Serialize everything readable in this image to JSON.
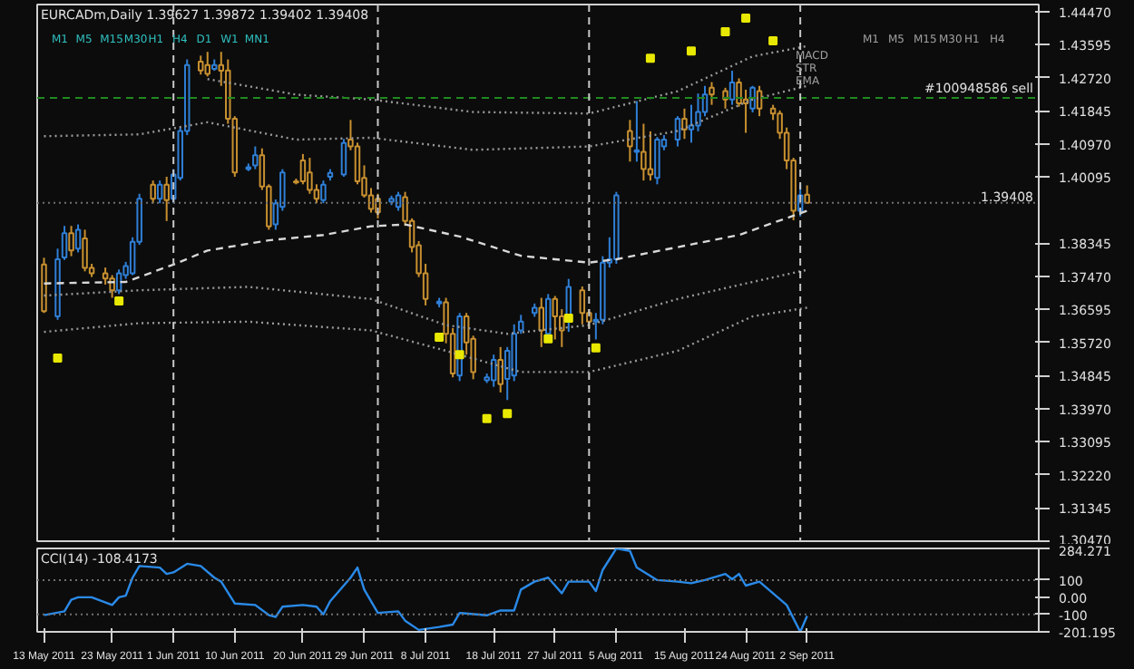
{
  "chart_data": [
    {
      "type": "candlestick",
      "title": "EURCADm,Daily 1.39627 1.39872 1.39402 1.39408",
      "annotations": [
        "M1",
        "M5",
        "M15",
        "M30",
        "H1",
        "H4",
        "D1",
        "W1",
        "MN1",
        "M1",
        "M5",
        "M15",
        "M30",
        "H1",
        "H4",
        "MACD",
        "STR",
        "EMA"
      ],
      "x": [
        "2011-05-13",
        "2011-05-15",
        "2011-05-16",
        "2011-05-17",
        "2011-05-18",
        "2011-05-19",
        "2011-05-20",
        "2011-05-22",
        "2011-05-23",
        "2011-05-24",
        "2011-05-25",
        "2011-05-26",
        "2011-05-27",
        "2011-05-29",
        "2011-05-30",
        "2011-05-31",
        "2011-06-01",
        "2011-06-02",
        "2011-06-03",
        "2011-06-05",
        "2011-06-06",
        "2011-06-07",
        "2011-06-08",
        "2011-06-09",
        "2011-06-10",
        "2011-06-12",
        "2011-06-13",
        "2011-06-14",
        "2011-06-15",
        "2011-06-16",
        "2011-06-17",
        "2011-06-19",
        "2011-06-20",
        "2011-06-21",
        "2011-06-22",
        "2011-06-23",
        "2011-06-24",
        "2011-06-26",
        "2011-06-27",
        "2011-06-28",
        "2011-06-29",
        "2011-06-30",
        "2011-07-01",
        "2011-07-03",
        "2011-07-04",
        "2011-07-05",
        "2011-07-06",
        "2011-07-07",
        "2011-07-08",
        "2011-07-10",
        "2011-07-11",
        "2011-07-12",
        "2011-07-13",
        "2011-07-14",
        "2011-07-15",
        "2011-07-17",
        "2011-07-18",
        "2011-07-19",
        "2011-07-20",
        "2011-07-21",
        "2011-07-22",
        "2011-07-24",
        "2011-07-25",
        "2011-07-26",
        "2011-07-27",
        "2011-07-28",
        "2011-07-29",
        "2011-07-31",
        "2011-08-01",
        "2011-08-02",
        "2011-08-03",
        "2011-08-04",
        "2011-08-05",
        "2011-08-07",
        "2011-08-08",
        "2011-08-09",
        "2011-08-10",
        "2011-08-11",
        "2011-08-12",
        "2011-08-14",
        "2011-08-15",
        "2011-08-16",
        "2011-08-17",
        "2011-08-18",
        "2011-08-19",
        "2011-08-21",
        "2011-08-22",
        "2011-08-23",
        "2011-08-24",
        "2011-08-25",
        "2011-08-26",
        "2011-08-28",
        "2011-08-29",
        "2011-08-30",
        "2011-08-31",
        "2011-09-01",
        "2011-09-02"
      ],
      "ohlc": [
        [
          1.3778,
          1.3796,
          1.365,
          1.3655
        ],
        [
          1.3641,
          1.382,
          1.3632,
          1.3792
        ],
        [
          1.3797,
          1.388,
          1.379,
          1.3861
        ],
        [
          1.3861,
          1.388,
          1.38,
          1.3815
        ],
        [
          1.382,
          1.3884,
          1.381,
          1.387
        ],
        [
          1.3847,
          1.387,
          1.376,
          1.3769
        ],
        [
          1.3769,
          1.378,
          1.3745,
          1.3755
        ],
        [
          1.3755,
          1.377,
          1.3725,
          1.3741
        ],
        [
          1.3741,
          1.375,
          1.369,
          1.371
        ],
        [
          1.371,
          1.3765,
          1.37,
          1.3755
        ],
        [
          1.375,
          1.3785,
          1.374,
          1.3774
        ],
        [
          1.3755,
          1.385,
          1.375,
          1.3838
        ],
        [
          1.3838,
          1.3965,
          1.383,
          1.3952
        ],
        [
          1.3989,
          1.4,
          1.394,
          1.3952
        ],
        [
          1.3952,
          1.4,
          1.394,
          1.3989
        ],
        [
          1.3989,
          1.401,
          1.3893,
          1.3948
        ],
        [
          1.3952,
          1.403,
          1.394,
          1.4016
        ],
        [
          1.4007,
          1.414,
          1.4,
          1.4131
        ],
        [
          1.4131,
          1.432,
          1.412,
          1.4305
        ],
        [
          1.4314,
          1.433,
          1.428,
          1.4291
        ],
        [
          1.4305,
          1.434,
          1.4275,
          1.4282
        ],
        [
          1.4295,
          1.432,
          1.429,
          1.4305
        ],
        [
          1.4305,
          1.434,
          1.425,
          1.429
        ],
        [
          1.4291,
          1.432,
          1.415,
          1.4163
        ],
        [
          1.4163,
          1.417,
          1.401,
          1.4021
        ],
        [
          1.403,
          1.4045,
          1.4025,
          1.4035
        ],
        [
          1.404,
          1.409,
          1.403,
          1.4067
        ],
        [
          1.4067,
          1.4085,
          1.3975,
          1.3984
        ],
        [
          1.3984,
          1.399,
          1.387,
          1.3879
        ],
        [
          1.3884,
          1.395,
          1.387,
          1.3939
        ],
        [
          1.393,
          1.403,
          1.392,
          1.4021
        ],
        [
          1.3998,
          1.4005,
          1.399,
          1.3995
        ],
        [
          1.4053,
          1.407,
          1.399,
          1.3998
        ],
        [
          1.4021,
          1.406,
          1.3965,
          1.3975
        ],
        [
          1.3975,
          1.399,
          1.394,
          1.3952
        ],
        [
          1.3948,
          1.4,
          1.394,
          1.3989
        ],
        [
          1.401,
          1.403,
          1.4,
          1.402
        ],
        [
          1.4016,
          1.411,
          1.401,
          1.4099
        ],
        [
          1.4108,
          1.416,
          1.408,
          1.409
        ],
        [
          1.409,
          1.41,
          1.399,
          1.3998
        ],
        [
          1.4007,
          1.404,
          1.3955,
          1.3961
        ],
        [
          1.3961,
          1.398,
          1.3915,
          1.3925
        ],
        [
          1.3952,
          1.3965,
          1.39,
          1.3916
        ],
        [
          1.3944,
          1.396,
          1.3935,
          1.3952
        ],
        [
          1.393,
          1.397,
          1.392,
          1.3961
        ],
        [
          1.3956,
          1.397,
          1.388,
          1.3893
        ],
        [
          1.3893,
          1.39,
          1.381,
          1.3824
        ],
        [
          1.3829,
          1.384,
          1.3745,
          1.3755
        ],
        [
          1.3755,
          1.378,
          1.367,
          1.3687
        ],
        [
          1.3675,
          1.369,
          1.3665,
          1.368
        ],
        [
          1.3678,
          1.369,
          1.357,
          1.3595
        ],
        [
          1.3595,
          1.361,
          1.348,
          1.349
        ],
        [
          1.3485,
          1.365,
          1.347,
          1.3641
        ],
        [
          1.3641,
          1.365,
          1.354,
          1.3572
        ],
        [
          1.3582,
          1.359,
          1.3475,
          1.3494
        ],
        [
          1.3472,
          1.349,
          1.3465,
          1.348
        ],
        [
          1.3472,
          1.354,
          1.3455,
          1.3526
        ],
        [
          1.3526,
          1.356,
          1.344,
          1.3462
        ],
        [
          1.3476,
          1.356,
          1.342,
          1.355
        ],
        [
          1.3485,
          1.362,
          1.347,
          1.3595
        ],
        [
          1.3604,
          1.3645,
          1.3595,
          1.3627
        ],
        [
          1.365,
          1.3675,
          1.364,
          1.3664
        ],
        [
          1.3664,
          1.369,
          1.356,
          1.3604
        ],
        [
          1.3595,
          1.37,
          1.359,
          1.3687
        ],
        [
          1.3687,
          1.3695,
          1.358,
          1.3641
        ],
        [
          1.3641,
          1.366,
          1.356,
          1.3604
        ],
        [
          1.3632,
          1.374,
          1.36,
          1.3719
        ],
        [
          1.371,
          1.372,
          1.362,
          1.365
        ],
        [
          1.365,
          1.366,
          1.361,
          1.3627
        ],
        [
          1.3627,
          1.365,
          1.358,
          1.3632
        ],
        [
          1.3632,
          1.38,
          1.362,
          1.3783
        ],
        [
          1.3783,
          1.385,
          1.377,
          1.3792
        ],
        [
          1.3792,
          1.397,
          1.378,
          1.3961
        ],
        [
          1.4131,
          1.416,
          1.405,
          1.409
        ],
        [
          1.4076,
          1.421,
          1.405,
          1.408
        ],
        [
          1.4076,
          1.415,
          1.4,
          1.403
        ],
        [
          1.403,
          1.413,
          1.4,
          1.4016
        ],
        [
          1.4007,
          1.4115,
          1.399,
          1.4108
        ],
        [
          1.409,
          1.412,
          1.408,
          1.4108
        ],
        [
          1.4108,
          1.417,
          1.409,
          1.4163
        ],
        [
          1.4163,
          1.419,
          1.411,
          1.4135
        ],
        [
          1.4135,
          1.42,
          1.41,
          1.4145
        ],
        [
          1.4145,
          1.423,
          1.413,
          1.4181
        ],
        [
          1.4181,
          1.425,
          1.417,
          1.4227
        ],
        [
          1.4245,
          1.426,
          1.42,
          1.4227
        ],
        [
          1.4236,
          1.4245,
          1.419,
          1.4214
        ],
        [
          1.4214,
          1.429,
          1.42,
          1.4259
        ],
        [
          1.4259,
          1.427,
          1.4195,
          1.4204
        ],
        [
          1.4214,
          1.424,
          1.4126,
          1.4204
        ],
        [
          1.419,
          1.425,
          1.418,
          1.4245
        ],
        [
          1.4236,
          1.425,
          1.417,
          1.419
        ],
        [
          1.419,
          1.42,
          1.416,
          1.4177
        ],
        [
          1.4177,
          1.4185,
          1.411,
          1.4126
        ],
        [
          1.4126,
          1.414,
          1.403,
          1.4053
        ],
        [
          1.4053,
          1.406,
          1.3895,
          1.392
        ],
        [
          1.392,
          1.399,
          1.3905,
          1.3961
        ],
        [
          1.39627,
          1.39872,
          1.39402,
          1.39408
        ]
      ],
      "series": [
        {
          "type": "line",
          "color": "#d8d8d8",
          "line_style": "dashed",
          "x": [
            "2011-05-13",
            "2011-05-25",
            "2011-06-01",
            "2011-06-06",
            "2011-06-15",
            "2011-06-23",
            "2011-06-30",
            "2011-07-05",
            "2011-07-13",
            "2011-07-22",
            "2011-08-01",
            "2011-08-05",
            "2011-08-14",
            "2011-08-23",
            "2011-09-02"
          ],
          "values": [
            1.3728,
            1.3732,
            1.3778,
            1.3815,
            1.3842,
            1.3856,
            1.3879,
            1.3884,
            1.3852,
            1.3801,
            1.3783,
            1.3792,
            1.3824,
            1.3856,
            1.392
          ]
        },
        {
          "type": "line",
          "color": "#9a9a9a",
          "line_style": "dotted",
          "x": [
            "2011-06-06",
            "2011-06-19",
            "2011-06-30",
            "2011-07-15",
            "2011-08-01",
            "2011-08-14",
            "2011-08-25",
            "2011-09-02"
          ],
          "values": [
            1.4268,
            1.4227,
            1.4214,
            1.4181,
            1.4177,
            1.4236,
            1.4328,
            1.4355
          ]
        },
        {
          "type": "line",
          "color": "#9a9a9a",
          "line_style": "dotted",
          "x": [
            "2011-05-13",
            "2011-05-27",
            "2011-06-06",
            "2011-06-19",
            "2011-06-30",
            "2011-07-15",
            "2011-08-01",
            "2011-08-14",
            "2011-08-25",
            "2011-09-02"
          ],
          "values": [
            1.4117,
            1.4122,
            1.4154,
            1.4108,
            1.4113,
            1.4081,
            1.409,
            1.4131,
            1.4214,
            1.425
          ]
        },
        {
          "type": "line",
          "color": "#9a9a9a",
          "line_style": "dotted",
          "x": [
            "2011-05-13",
            "2011-05-27",
            "2011-06-12",
            "2011-06-30",
            "2011-07-11",
            "2011-07-20",
            "2011-08-01",
            "2011-08-14",
            "2011-08-25",
            "2011-09-02"
          ],
          "values": [
            1.3696,
            1.371,
            1.3719,
            1.3687,
            1.3618,
            1.3595,
            1.3618,
            1.3687,
            1.3732,
            1.3764
          ]
        },
        {
          "type": "line",
          "color": "#9a9a9a",
          "line_style": "dotted",
          "x": [
            "2011-05-13",
            "2011-05-27",
            "2011-06-12",
            "2011-06-30",
            "2011-07-11",
            "2011-07-22",
            "2011-08-01",
            "2011-08-14",
            "2011-08-25",
            "2011-09-02"
          ],
          "values": [
            1.36,
            1.3623,
            1.3627,
            1.3604,
            1.355,
            1.3494,
            1.3494,
            1.355,
            1.3641,
            1.3664
          ]
        },
        {
          "type": "scatter",
          "color": "#e8e800",
          "marker": "square",
          "x": [
            "2011-05-15",
            "2011-05-24",
            "2011-07-10",
            "2011-07-13",
            "2011-07-17",
            "2011-07-20",
            "2011-07-26",
            "2011-07-29",
            "2011-08-02",
            "2011-08-10",
            "2011-08-16",
            "2011-08-21",
            "2011-08-24",
            "2011-08-28"
          ],
          "values": [
            1.3531,
            1.3682,
            1.3586,
            1.354,
            1.3371,
            1.3384,
            1.3582,
            1.3636,
            1.3558,
            1.4323,
            1.4342,
            1.4393,
            1.4429,
            1.4369
          ]
        }
      ],
      "ref_lines": [
        {
          "axis": "y",
          "value": 1.4218,
          "label": "#100948586 sell",
          "color": "#1f8a1f",
          "line_style": "dashed"
        },
        {
          "axis": "y",
          "value": 1.39408,
          "label": "1.39408",
          "color": "#707070",
          "line_style": "dotted"
        },
        {
          "axis": "x",
          "value": "2011-06-01",
          "color": "#c8c8c8",
          "line_style": "dashed"
        },
        {
          "axis": "x",
          "value": "2011-07-01",
          "color": "#c8c8c8",
          "line_style": "dashed"
        },
        {
          "axis": "x",
          "value": "2011-08-01",
          "color": "#c8c8c8",
          "line_style": "dashed"
        },
        {
          "axis": "x",
          "value": "2011-09-01",
          "color": "#c8c8c8",
          "line_style": "dashed"
        }
      ],
      "xlim": [
        "2011-05-12",
        "2011-10-06"
      ],
      "ylim": [
        1.3047,
        1.4465
      ],
      "yticks": [
        {
          "value": 1.4447,
          "label": "1.44470"
        },
        {
          "value": 1.43595,
          "label": "1.43595"
        },
        {
          "value": 1.4272,
          "label": "1.42720"
        },
        {
          "value": 1.41845,
          "label": "1.41845"
        },
        {
          "value": 1.4097,
          "label": "1.40970"
        },
        {
          "value": 1.40095,
          "label": "1.40095"
        },
        {
          "value": 1.38345,
          "label": "1.38345"
        },
        {
          "value": 1.3747,
          "label": "1.37470"
        },
        {
          "value": 1.36595,
          "label": "1.36595"
        },
        {
          "value": 1.3572,
          "label": "1.35720"
        },
        {
          "value": 1.34845,
          "label": "1.34845"
        },
        {
          "value": 1.3397,
          "label": "1.33970"
        },
        {
          "value": 1.33095,
          "label": "1.33095"
        },
        {
          "value": 1.3222,
          "label": "1.32220"
        },
        {
          "value": 1.31345,
          "label": "1.31345"
        },
        {
          "value": 1.3047,
          "label": "1.30470"
        }
      ],
      "tick_labels": "y"
    },
    {
      "type": "line",
      "title": "CCI(14) -108.4173",
      "x": [
        "2011-05-13",
        "2011-05-16",
        "2011-05-17",
        "2011-05-18",
        "2011-05-20",
        "2011-05-23",
        "2011-05-24",
        "2011-05-25",
        "2011-05-26",
        "2011-05-27",
        "2011-05-30",
        "2011-05-31",
        "2011-06-01",
        "2011-06-03",
        "2011-06-05",
        "2011-06-07",
        "2011-06-08",
        "2011-06-10",
        "2011-06-13",
        "2011-06-15",
        "2011-06-16",
        "2011-06-17",
        "2011-06-20",
        "2011-06-22",
        "2011-06-23",
        "2011-06-24",
        "2011-06-27",
        "2011-06-28",
        "2011-06-29",
        "2011-07-01",
        "2011-07-04",
        "2011-07-05",
        "2011-07-07",
        "2011-07-10",
        "2011-07-12",
        "2011-07-13",
        "2011-07-17",
        "2011-07-19",
        "2011-07-21",
        "2011-07-22",
        "2011-07-24",
        "2011-07-26",
        "2011-07-28",
        "2011-07-29",
        "2011-08-01",
        "2011-08-02",
        "2011-08-03",
        "2011-08-05",
        "2011-08-07",
        "2011-08-08",
        "2011-08-11",
        "2011-08-14",
        "2011-08-16",
        "2011-08-18",
        "2011-08-21",
        "2011-08-22",
        "2011-08-23",
        "2011-08-24",
        "2011-08-26",
        "2011-08-30",
        "2011-09-01",
        "2011-09-02"
      ],
      "series": [
        {
          "color": "#2a8ae8",
          "values": [
            -104,
            -82,
            -14,
            0,
            0,
            -45,
            0,
            9,
            114,
            182,
            173,
            136,
            145,
            195,
            182,
            114,
            91,
            -36,
            -45,
            -104,
            -114,
            -55,
            -45,
            -55,
            -100,
            -23,
            114,
            173,
            45,
            -91,
            -82,
            -136,
            -190,
            -173,
            -159,
            -91,
            -105,
            -77,
            -77,
            45,
            91,
            114,
            23,
            91,
            91,
            36,
            159,
            284,
            270,
            173,
            100,
            91,
            82,
            100,
            136,
            105,
            136,
            68,
            91,
            -45,
            -201,
            -108.4173
          ]
        }
      ],
      "ref_lines": [
        {
          "axis": "y",
          "value": 100,
          "color": "#707070",
          "line_style": "dotted"
        },
        {
          "axis": "y",
          "value": -100,
          "color": "#707070",
          "line_style": "dotted"
        }
      ],
      "xlim": [
        "2011-05-12",
        "2011-10-06"
      ],
      "ylim": [
        -201.195,
        284.271
      ],
      "xticks": [
        {
          "value": "2011-05-13",
          "label": "13 May 2011"
        },
        {
          "value": "2011-05-23",
          "label": "23 May 2011"
        },
        {
          "value": "2011-06-01",
          "label": "1 Jun 2011"
        },
        {
          "value": "2011-06-10",
          "label": "10 Jun 2011"
        },
        {
          "value": "2011-06-20",
          "label": "20 Jun 2011"
        },
        {
          "value": "2011-06-29",
          "label": "29 Jun 2011"
        },
        {
          "value": "2011-07-08",
          "label": "8 Jul 2011"
        },
        {
          "value": "2011-07-18",
          "label": "18 Jul 2011"
        },
        {
          "value": "2011-07-27",
          "label": "27 Jul 2011"
        },
        {
          "value": "2011-08-05",
          "label": "5 Aug 2011"
        },
        {
          "value": "2011-08-15",
          "label": "15 Aug 2011"
        },
        {
          "value": "2011-08-24",
          "label": "24 Aug 2011"
        },
        {
          "value": "2011-09-02",
          "label": "2 Sep 2011"
        }
      ],
      "yticks": [
        284.271,
        100,
        {
          "value": 0,
          "label": "0.00"
        },
        -100,
        -201.195
      ]
    }
  ]
}
